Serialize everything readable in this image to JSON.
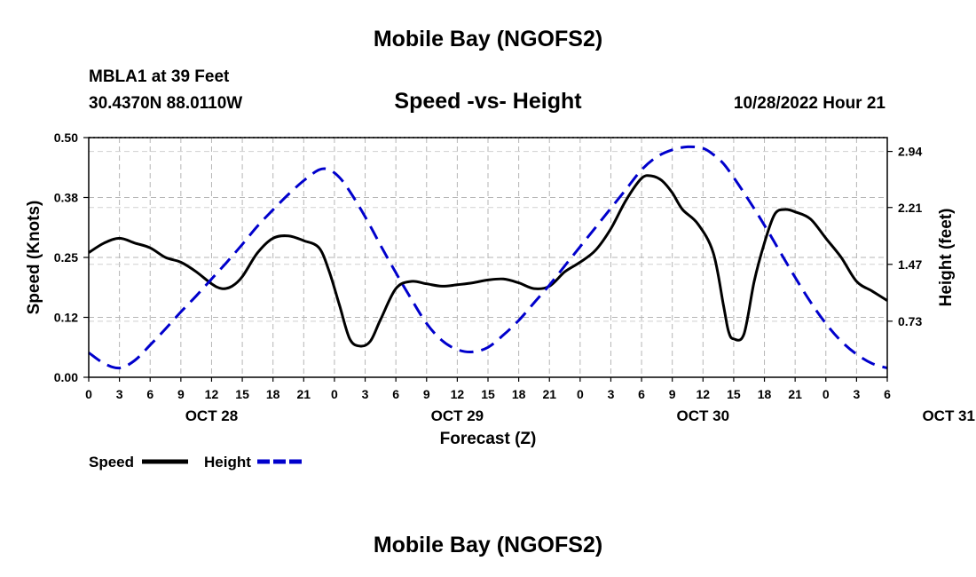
{
  "header": {
    "title": "Mobile Bay (NGOFS2)",
    "station": "MBLA1 at 39 Feet",
    "coords": "30.4370N  88.0110W",
    "subtitle": "Speed -vs- Height",
    "datetime": "10/28/2022 Hour 21"
  },
  "footer": {
    "title": "Mobile Bay (NGOFS2)"
  },
  "chart_data": {
    "type": "line",
    "xlabel": "Forecast (Z)",
    "ylabel_left": "Speed (Knots)",
    "ylabel_right": "Height (feet)",
    "x_ticks": [
      "0",
      "3",
      "6",
      "9",
      "12",
      "15",
      "18",
      "21",
      "0",
      "3",
      "6",
      "9",
      "12",
      "15",
      "18",
      "21",
      "0",
      "3",
      "6",
      "9",
      "12",
      "15",
      "18",
      "21",
      "0",
      "3",
      "6"
    ],
    "day_labels": [
      {
        "label": "OCT 28",
        "hour": 12
      },
      {
        "label": "OCT 29",
        "hour": 36
      },
      {
        "label": "OCT 30",
        "hour": 60
      },
      {
        "label": "OCT 31",
        "hour": 84
      }
    ],
    "xlim_hours": [
      0,
      78
    ],
    "ylim_left": [
      0,
      0.5
    ],
    "yticks_left": [
      "0.00",
      "0.12",
      "0.25",
      "0.38",
      "0.50"
    ],
    "ylim_right": [
      0,
      3.12
    ],
    "yticks_right": [
      "0.73",
      "1.47",
      "2.21",
      "2.94"
    ],
    "grid": true,
    "legend_placement": "bottom-left",
    "series": [
      {
        "name": "Speed",
        "axis": "left",
        "color": "#000000",
        "style": "solid",
        "x_hours": [
          0,
          1.5,
          3,
          4.5,
          6,
          7.5,
          9,
          10.5,
          12,
          13,
          14,
          15,
          16.5,
          18,
          19.5,
          21,
          22.5,
          23.5,
          24.5,
          25.5,
          26.5,
          27.5,
          28.5,
          30,
          31.5,
          33,
          34.5,
          36,
          37.5,
          39,
          40.5,
          42,
          43.5,
          45,
          46.5,
          48,
          49.5,
          51,
          52.5,
          54,
          55,
          56,
          57,
          58,
          59.5,
          61,
          62,
          62.5,
          63,
          64,
          65,
          66,
          67,
          68,
          69,
          70.5,
          72,
          73.5,
          75,
          76.5,
          78
        ],
        "values": [
          0.26,
          0.28,
          0.29,
          0.28,
          0.27,
          0.25,
          0.24,
          0.22,
          0.195,
          0.185,
          0.19,
          0.21,
          0.26,
          0.29,
          0.295,
          0.285,
          0.27,
          0.22,
          0.15,
          0.08,
          0.065,
          0.075,
          0.12,
          0.185,
          0.2,
          0.195,
          0.19,
          0.193,
          0.197,
          0.203,
          0.205,
          0.197,
          0.185,
          0.19,
          0.22,
          0.24,
          0.265,
          0.31,
          0.37,
          0.415,
          0.42,
          0.41,
          0.385,
          0.35,
          0.32,
          0.26,
          0.15,
          0.095,
          0.08,
          0.09,
          0.2,
          0.28,
          0.34,
          0.35,
          0.345,
          0.33,
          0.29,
          0.25,
          0.2,
          0.18,
          0.16
        ]
      },
      {
        "name": "Height",
        "axis": "right",
        "color": "#0000cc",
        "style": "dashed",
        "x_hours": [
          0,
          1.5,
          3,
          4.5,
          6,
          7.5,
          9,
          10.5,
          12,
          13.5,
          15,
          16.5,
          18,
          19.5,
          21,
          22.5,
          23.5,
          24.5,
          25.5,
          27,
          28.5,
          30,
          31.5,
          33,
          34.5,
          36,
          37.5,
          39,
          40.5,
          42,
          43.5,
          45,
          46.5,
          48,
          49.5,
          51,
          52.5,
          54,
          55.5,
          57,
          58.5,
          60,
          61,
          62,
          63,
          64.5,
          66,
          67.5,
          69,
          70.5,
          72,
          73.5,
          75,
          76.5,
          78
        ],
        "values": [
          0.32,
          0.18,
          0.12,
          0.22,
          0.42,
          0.63,
          0.85,
          1.06,
          1.28,
          1.5,
          1.73,
          1.97,
          2.18,
          2.38,
          2.56,
          2.7,
          2.7,
          2.6,
          2.42,
          2.09,
          1.72,
          1.36,
          1.02,
          0.7,
          0.48,
          0.36,
          0.33,
          0.39,
          0.55,
          0.74,
          0.97,
          1.2,
          1.45,
          1.7,
          1.95,
          2.2,
          2.45,
          2.7,
          2.87,
          2.96,
          3.0,
          2.98,
          2.9,
          2.78,
          2.6,
          2.3,
          1.98,
          1.64,
          1.3,
          0.98,
          0.7,
          0.47,
          0.3,
          0.18,
          0.12
        ]
      }
    ]
  }
}
